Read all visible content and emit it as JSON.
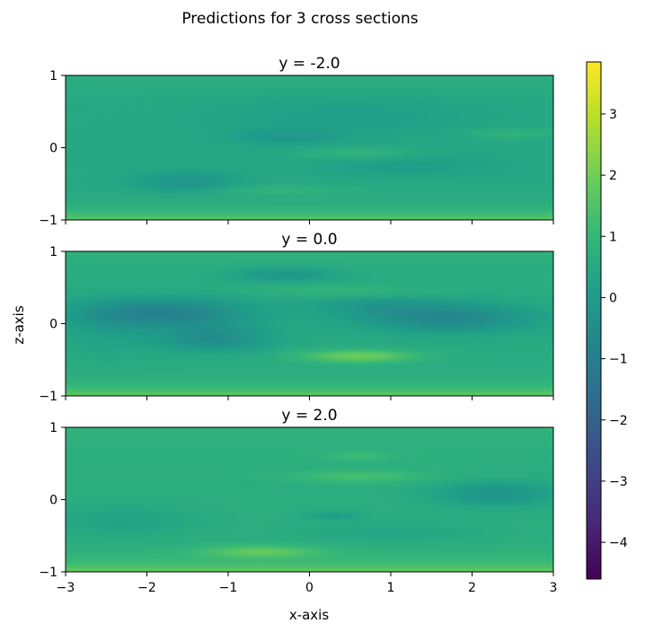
{
  "figure": {
    "title": "Predictions for 3 cross sections",
    "xlabel": "x-axis",
    "ylabel": "z-axis"
  },
  "colormap": "viridis",
  "colorbar": {
    "vmin": -4.6,
    "vmax": 3.85,
    "ticks": [
      "3",
      "2",
      "1",
      "0",
      "−1",
      "−2",
      "−3",
      "−4"
    ],
    "tick_values": [
      3,
      2,
      1,
      0,
      -1,
      -2,
      -3,
      -4
    ]
  },
  "chart_data": [
    {
      "type": "heatmap",
      "title": "y = -2.0",
      "xlim": [
        -3,
        3
      ],
      "ylim": [
        -1,
        1
      ],
      "yticks": [
        "−1",
        "0",
        "1"
      ],
      "ytick_values": [
        -1,
        0,
        1
      ],
      "base_value": 0.6,
      "blobs": [
        {
          "x": -1.5,
          "z": -0.48,
          "sx": 0.45,
          "sz": 0.1,
          "value": -0.7
        },
        {
          "x": -0.3,
          "z": 0.15,
          "sx": 0.45,
          "sz": 0.08,
          "value": -0.5
        },
        {
          "x": 0.5,
          "z": 0.45,
          "sx": 1.2,
          "sz": 0.2,
          "value": -0.35
        },
        {
          "x": 0.6,
          "z": -0.08,
          "sx": 0.5,
          "sz": 0.06,
          "value": 0.5
        },
        {
          "x": 1.2,
          "z": -0.25,
          "sx": 0.8,
          "sz": 0.12,
          "value": -0.35
        },
        {
          "x": 2.5,
          "z": 0.2,
          "sx": 0.4,
          "sz": 0.05,
          "value": 0.45
        },
        {
          "x": -0.4,
          "z": -0.58,
          "sx": 0.6,
          "sz": 0.05,
          "value": 0.4
        }
      ]
    },
    {
      "type": "heatmap",
      "title": "y = 0.0",
      "xlim": [
        -3,
        3
      ],
      "ylim": [
        -1,
        1
      ],
      "yticks": [
        "−1",
        "0",
        "1"
      ],
      "ytick_values": [
        -1,
        0,
        1
      ],
      "base_value": 0.7,
      "blobs": [
        {
          "x": -1.8,
          "z": 0.15,
          "sx": 0.75,
          "sz": 0.14,
          "value": -1.4
        },
        {
          "x": -1.2,
          "z": -0.2,
          "sx": 0.5,
          "sz": 0.13,
          "value": -1.0
        },
        {
          "x": -0.3,
          "z": 0.68,
          "sx": 0.45,
          "sz": 0.07,
          "value": -0.8
        },
        {
          "x": 1.7,
          "z": 0.08,
          "sx": 0.75,
          "sz": 0.14,
          "value": -1.2
        },
        {
          "x": 0.8,
          "z": 0.25,
          "sx": 0.6,
          "sz": 0.1,
          "value": -0.5
        },
        {
          "x": 0.6,
          "z": -0.45,
          "sx": 0.5,
          "sz": 0.06,
          "value": 1.4
        },
        {
          "x": 0.4,
          "z": 0.45,
          "sx": 0.7,
          "sz": 0.06,
          "value": 0.4
        },
        {
          "x": -2.5,
          "z": -0.1,
          "sx": 0.4,
          "sz": 0.25,
          "value": -0.3
        }
      ]
    },
    {
      "type": "heatmap",
      "title": "y = 2.0",
      "xlim": [
        -3,
        3
      ],
      "ylim": [
        -1,
        1
      ],
      "yticks": [
        "−1",
        "0",
        "1"
      ],
      "ytick_values": [
        -1,
        0,
        1
      ],
      "base_value": 0.8,
      "blobs": [
        {
          "x": 2.3,
          "z": 0.08,
          "sx": 0.55,
          "sz": 0.12,
          "value": -0.9
        },
        {
          "x": -2.3,
          "z": -0.3,
          "sx": 0.6,
          "sz": 0.15,
          "value": -0.4
        },
        {
          "x": 0.6,
          "z": 0.32,
          "sx": 0.6,
          "sz": 0.06,
          "value": 0.7
        },
        {
          "x": 0.6,
          "z": 0.6,
          "sx": 0.3,
          "sz": 0.05,
          "value": 0.5
        },
        {
          "x": 0.3,
          "z": -0.22,
          "sx": 0.25,
          "sz": 0.04,
          "value": -0.6
        },
        {
          "x": -0.6,
          "z": -0.72,
          "sx": 0.5,
          "sz": 0.06,
          "value": 1.0
        },
        {
          "x": 1.0,
          "z": -0.45,
          "sx": 0.8,
          "sz": 0.1,
          "value": -0.3
        }
      ]
    }
  ],
  "xticks": [
    "−3",
    "−2",
    "−1",
    "0",
    "1",
    "2",
    "3"
  ],
  "xtick_values": [
    -3,
    -2,
    -1,
    0,
    1,
    2,
    3
  ]
}
